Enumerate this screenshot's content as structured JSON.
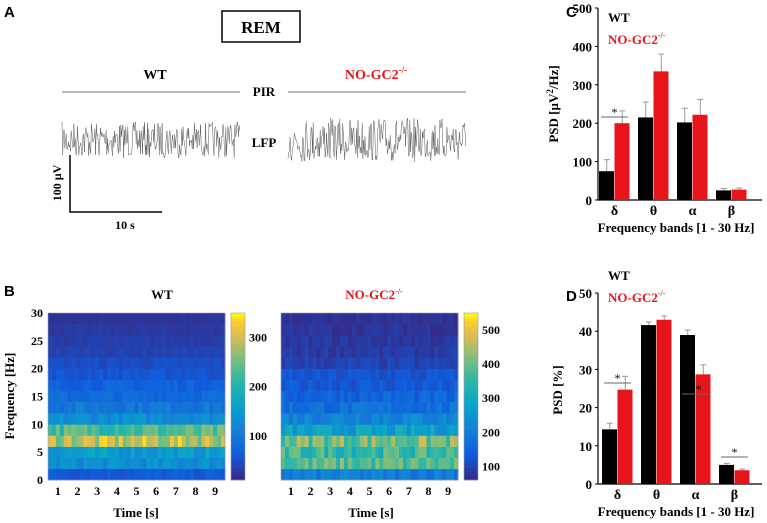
{
  "panel_labels": {
    "a": "A",
    "b": "B",
    "c": "C",
    "d": "D"
  },
  "panel_a": {
    "condition_label": "REM",
    "wt_label": "WT",
    "ko_label": "NO-GC2",
    "ko_superscript": "-/-",
    "pir_label": "PIR",
    "lfp_label": "LFP",
    "scale_voltage": "100 µV",
    "scale_time": "10 s"
  },
  "colors": {
    "wt": "#000000",
    "ko": "#e8141b"
  },
  "chart_data": [
    {
      "id": "B-WT",
      "type": "heatmap",
      "title": "WT",
      "xlabel": "Time [s]",
      "ylabel": "Frequency [Hz]",
      "xticks": [
        "1",
        "2",
        "3",
        "4",
        "5",
        "6",
        "7",
        "8",
        "9"
      ],
      "yticks": [
        "0",
        "5",
        "10",
        "15",
        "20",
        "25",
        "30"
      ],
      "xlim": [
        0.5,
        9.5
      ],
      "ylim": [
        0,
        30
      ],
      "freq_bin_hz": 2,
      "row_mean_power": [
        60,
        130,
        150,
        290,
        230,
        130,
        100,
        80,
        70,
        55,
        45,
        35,
        30,
        25,
        20
      ],
      "colorbar": {
        "range": [
          10,
          350
        ],
        "ticks": [
          "100",
          "200",
          "300"
        ]
      }
    },
    {
      "id": "B-KO",
      "type": "heatmap",
      "title": "NO-GC2",
      "title_sup": "-/-",
      "xlabel": "Time [s]",
      "xticks": [
        "1",
        "2",
        "3",
        "4",
        "5",
        "6",
        "7",
        "8",
        "9"
      ],
      "xlim": [
        0.5,
        9.5
      ],
      "ylim": [
        0,
        30
      ],
      "freq_bin_hz": 2,
      "row_mean_power": [
        200,
        380,
        360,
        410,
        270,
        220,
        170,
        150,
        130,
        120,
        95,
        85,
        80,
        75,
        70
      ],
      "colorbar": {
        "range": [
          60,
          550
        ],
        "ticks": [
          "100",
          "200",
          "300",
          "400",
          "500"
        ]
      }
    },
    {
      "id": "C",
      "type": "bar",
      "ylabel": "PSD [µV²/Hz]",
      "ylabel_main": "PSD [µV",
      "ylabel_sup": "2",
      "ylabel_end": "/Hz]",
      "xlabel": "Frequency bands  [1 - 30 Hz]",
      "categories": [
        "δ",
        "θ",
        "α",
        "β"
      ],
      "yticks": [
        "0",
        "100",
        "200",
        "300",
        "400",
        "500"
      ],
      "ylim": [
        0,
        500
      ],
      "legend": [
        "WT",
        "NO-GC2"
      ],
      "legend_sup": "-/-",
      "legend_position": "top-left",
      "series": [
        {
          "name": "WT",
          "values": [
            75,
            215,
            202,
            25
          ],
          "errors": [
            30,
            40,
            37,
            5
          ]
        },
        {
          "name": "NO-GC2-/-",
          "values": [
            200,
            335,
            222,
            27
          ],
          "errors": [
            32,
            45,
            40,
            4
          ]
        }
      ],
      "significance": [
        {
          "category": "δ",
          "label": "*"
        }
      ]
    },
    {
      "id": "D",
      "type": "bar",
      "ylabel": "PSD [%]",
      "xlabel": "Frequency bands  [1 - 30 Hz]",
      "categories": [
        "δ",
        "θ",
        "α",
        "β"
      ],
      "yticks": [
        "0",
        "10",
        "20",
        "30",
        "40",
        "50"
      ],
      "ylim": [
        0,
        50
      ],
      "legend": [
        "WT",
        "NO-GC2"
      ],
      "legend_sup": "-/-",
      "legend_position": "top-left",
      "series": [
        {
          "name": "WT",
          "values": [
            14.3,
            41.6,
            39.0,
            5.0
          ],
          "errors": [
            1.6,
            0.8,
            1.3,
            0.4
          ]
        },
        {
          "name": "NO-GC2-/-",
          "values": [
            24.7,
            43.0,
            28.7,
            3.6
          ],
          "errors": [
            3.5,
            1.0,
            2.5,
            0.3
          ]
        }
      ],
      "significance": [
        {
          "category": "δ",
          "label": "*"
        },
        {
          "category": "α",
          "label": "**"
        },
        {
          "category": "β",
          "label": "*"
        }
      ]
    }
  ]
}
